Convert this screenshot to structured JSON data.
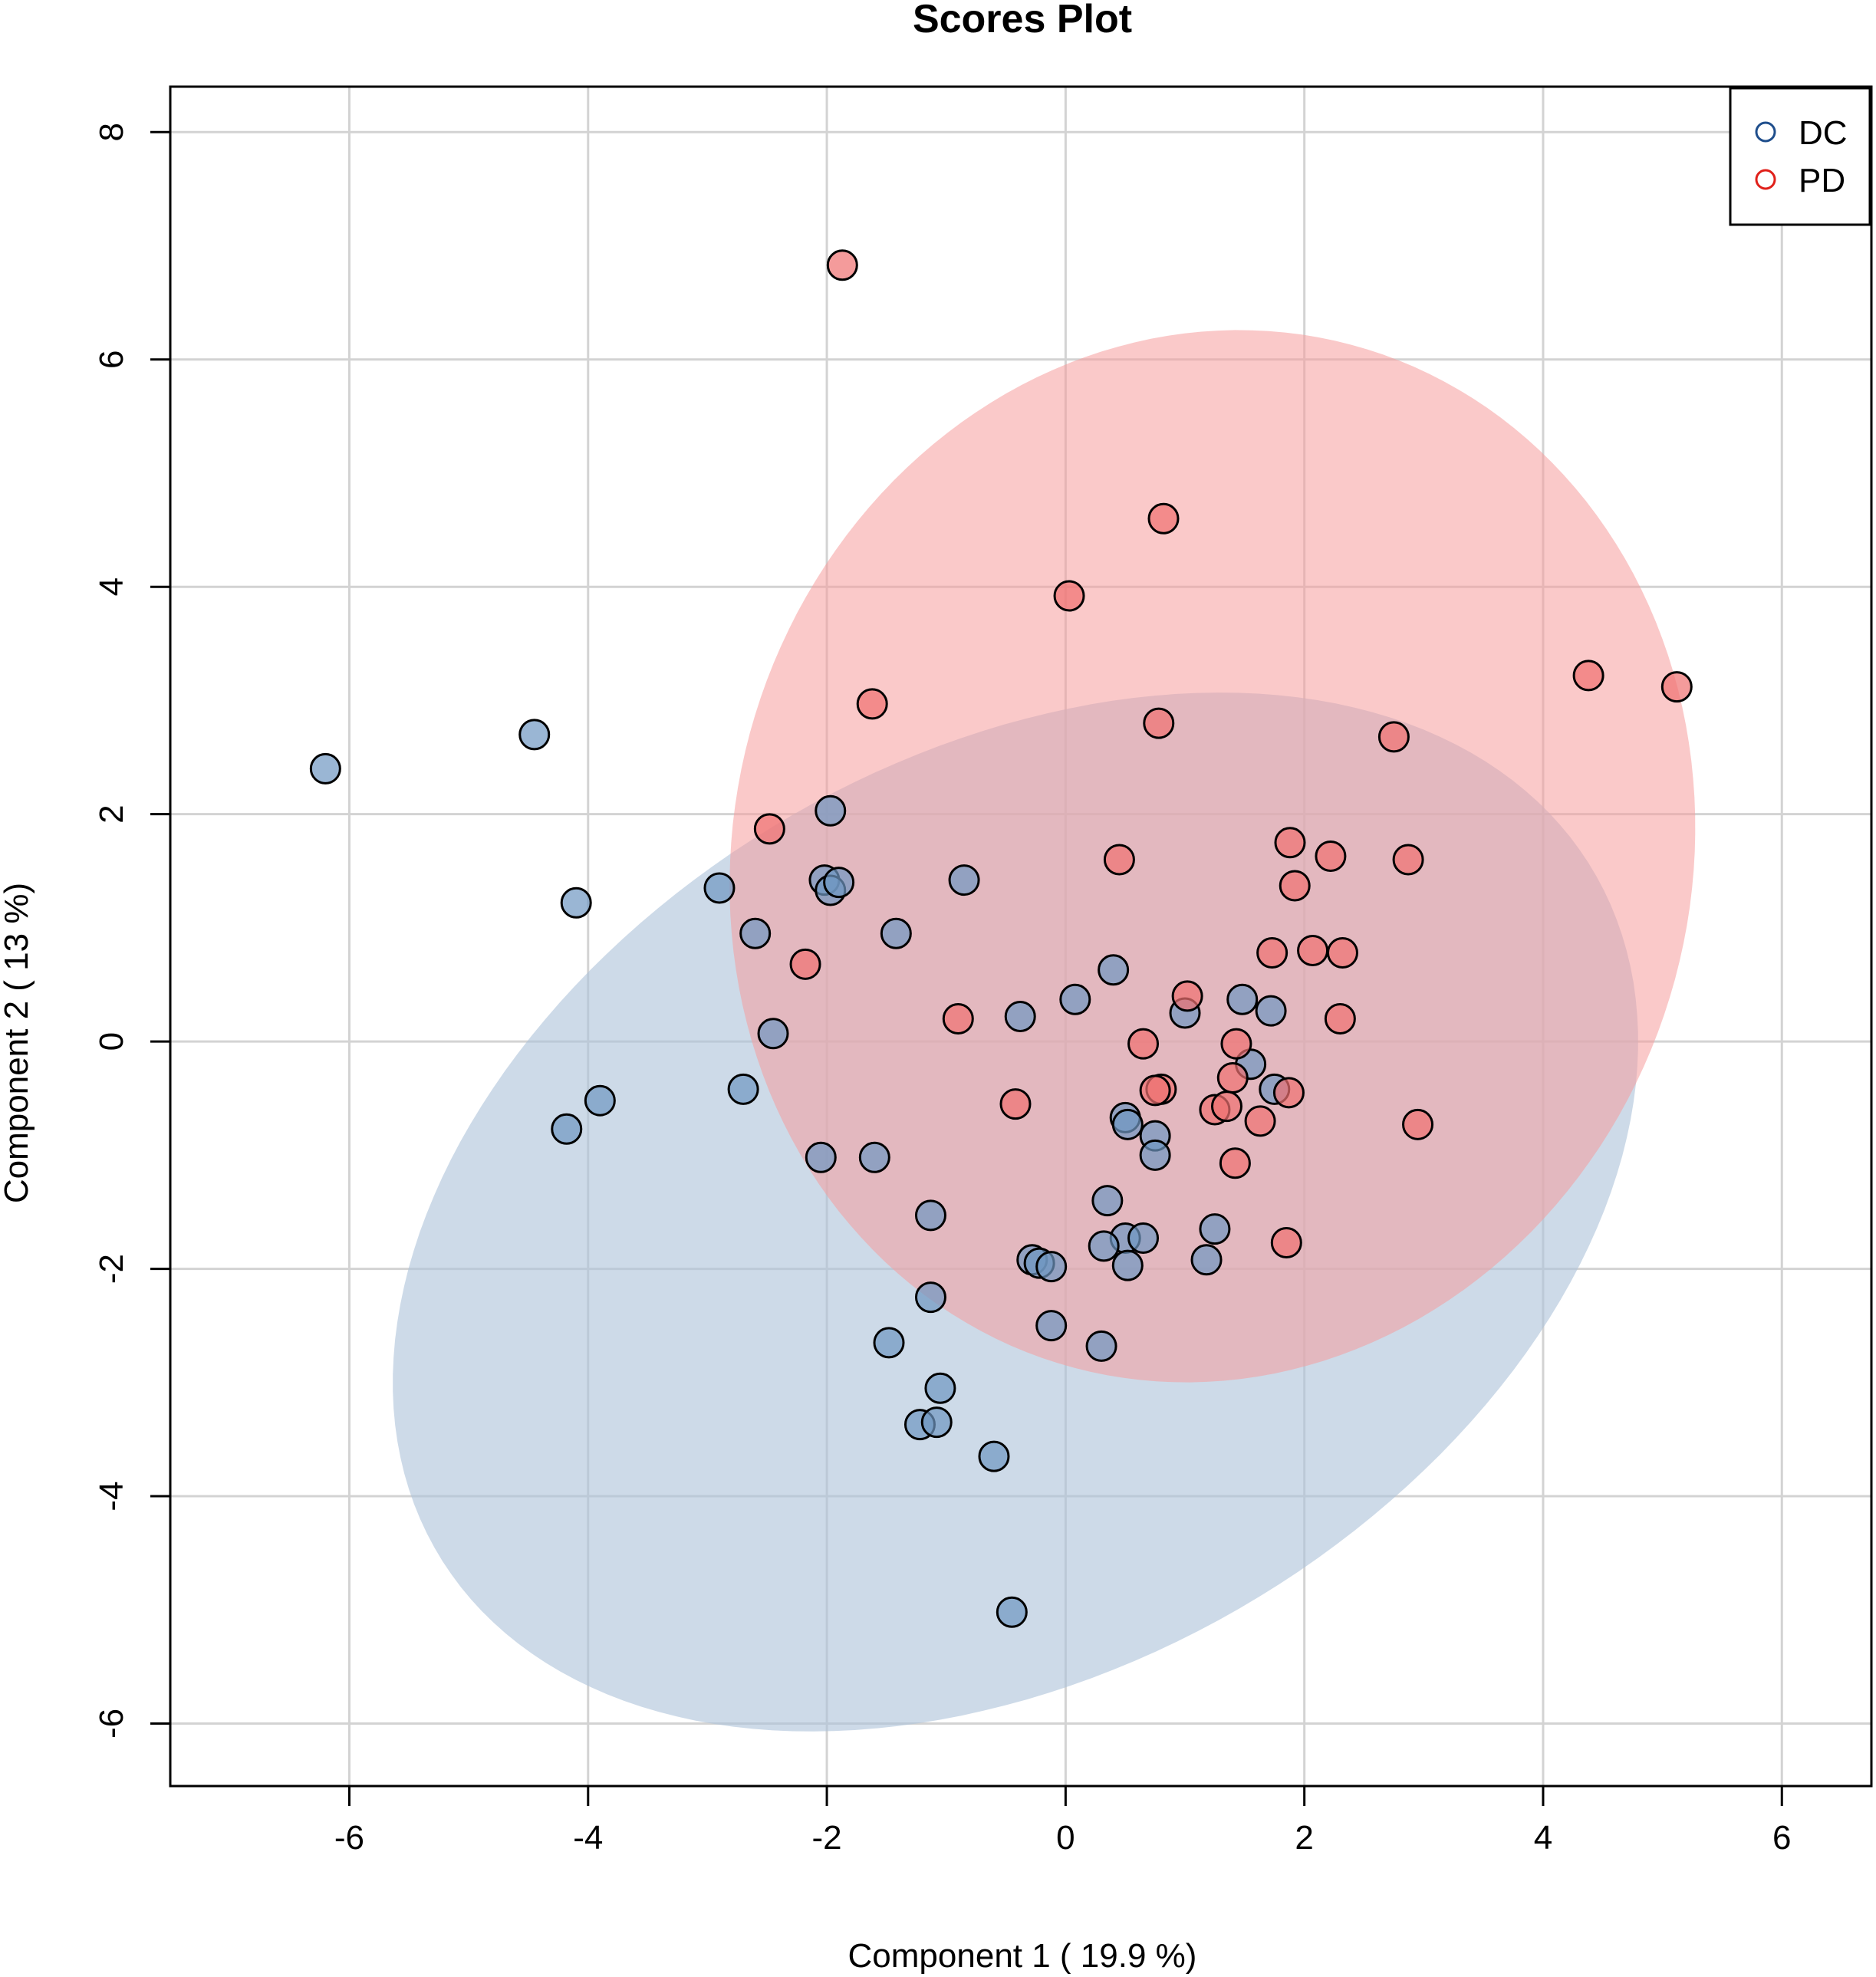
{
  "chart_data": {
    "type": "scatter",
    "title": "Scores Plot",
    "xlabel": "Component 1 ( 19.9 %)",
    "ylabel": "Component 2 ( 13 %)",
    "xlim": [
      -7.5,
      6.75
    ],
    "ylim": [
      -6.55,
      8.4
    ],
    "xticks": [
      -6,
      -4,
      -2,
      0,
      2,
      4,
      6
    ],
    "yticks": [
      -6,
      -4,
      -2,
      0,
      2,
      4,
      6,
      8
    ],
    "xtick_labels": [
      "-6",
      "-4",
      "-2",
      "0",
      "2",
      "4",
      "6"
    ],
    "ytick_labels": [
      "-6",
      "-4",
      "-2",
      "0",
      "2",
      "4",
      "6",
      "8"
    ],
    "grid": true,
    "legend_position": "top-right",
    "series": [
      {
        "name": "DC",
        "color": "#1f4e8c",
        "fill": "#6f97c2",
        "points": [
          [
            -6.2,
            2.4
          ],
          [
            -4.45,
            2.7
          ],
          [
            -4.1,
            1.22
          ],
          [
            -4.18,
            -0.77
          ],
          [
            -3.9,
            -0.52
          ],
          [
            -2.9,
            1.35
          ],
          [
            -2.6,
            0.95
          ],
          [
            -2.45,
            0.07
          ],
          [
            -2.7,
            -0.42
          ],
          [
            -2.05,
            -1.02
          ],
          [
            -1.97,
            2.03
          ],
          [
            -2.02,
            1.42
          ],
          [
            -1.97,
            1.33
          ],
          [
            -1.9,
            1.4
          ],
          [
            -0.85,
            1.42
          ],
          [
            -1.42,
            0.95
          ],
          [
            -1.6,
            -1.02
          ],
          [
            -1.13,
            -1.53
          ],
          [
            -1.13,
            -2.25
          ],
          [
            -1.48,
            -2.65
          ],
          [
            -1.05,
            -3.05
          ],
          [
            -1.22,
            -3.37
          ],
          [
            -1.08,
            -3.35
          ],
          [
            -0.6,
            -3.65
          ],
          [
            -0.45,
            -5.02
          ],
          [
            -0.38,
            0.22
          ],
          [
            0.08,
            0.37
          ],
          [
            0.4,
            0.63
          ],
          [
            1.0,
            0.25
          ],
          [
            1.48,
            0.37
          ],
          [
            1.72,
            0.27
          ],
          [
            1.55,
            -0.2
          ],
          [
            1.75,
            -0.42
          ],
          [
            0.5,
            -0.67
          ],
          [
            0.52,
            -0.73
          ],
          [
            0.75,
            -0.83
          ],
          [
            0.75,
            -1.0
          ],
          [
            0.35,
            -1.4
          ],
          [
            0.5,
            -1.73
          ],
          [
            0.65,
            -1.73
          ],
          [
            0.32,
            -1.8
          ],
          [
            0.52,
            -1.97
          ],
          [
            1.25,
            -1.65
          ],
          [
            1.18,
            -1.92
          ],
          [
            -0.28,
            -1.92
          ],
          [
            -0.22,
            -1.95
          ],
          [
            -0.12,
            -1.98
          ],
          [
            -0.12,
            -2.5
          ],
          [
            0.3,
            -2.68
          ]
        ]
      },
      {
        "name": "PD",
        "color": "#e0201a",
        "fill": "#f07070",
        "points": [
          [
            -1.87,
            6.83
          ],
          [
            0.82,
            4.6
          ],
          [
            0.03,
            3.92
          ],
          [
            -1.62,
            2.97
          ],
          [
            0.78,
            2.8
          ],
          [
            4.38,
            3.22
          ],
          [
            5.12,
            3.12
          ],
          [
            2.75,
            2.68
          ],
          [
            -2.48,
            1.87
          ],
          [
            0.45,
            1.6
          ],
          [
            1.88,
            1.75
          ],
          [
            2.22,
            1.63
          ],
          [
            2.87,
            1.6
          ],
          [
            1.92,
            1.37
          ],
          [
            -2.18,
            0.68
          ],
          [
            1.73,
            0.78
          ],
          [
            2.07,
            0.8
          ],
          [
            2.32,
            0.78
          ],
          [
            -0.9,
            0.2
          ],
          [
            1.02,
            0.4
          ],
          [
            2.3,
            0.2
          ],
          [
            0.65,
            -0.02
          ],
          [
            1.43,
            -0.02
          ],
          [
            0.8,
            -0.42
          ],
          [
            0.75,
            -0.43
          ],
          [
            1.4,
            -0.32
          ],
          [
            1.87,
            -0.45
          ],
          [
            -0.42,
            -0.55
          ],
          [
            1.25,
            -0.6
          ],
          [
            1.35,
            -0.57
          ],
          [
            1.63,
            -0.7
          ],
          [
            2.95,
            -0.73
          ],
          [
            1.42,
            -1.07
          ],
          [
            1.85,
            -1.77
          ]
        ]
      }
    ],
    "ellipses": [
      {
        "series": "DC",
        "color": "#aec4da",
        "opacity": 0.62,
        "center": [
          -0.42,
          -1.5
        ],
        "semi_major": 5.7,
        "semi_minor": 3.95,
        "angle_deg": 34
      },
      {
        "series": "PD",
        "color": "#f69d9d",
        "opacity": 0.55,
        "center": [
          1.23,
          1.63
        ],
        "semi_major": 4.65,
        "semi_minor": 4.02,
        "angle_deg": 79
      }
    ]
  }
}
